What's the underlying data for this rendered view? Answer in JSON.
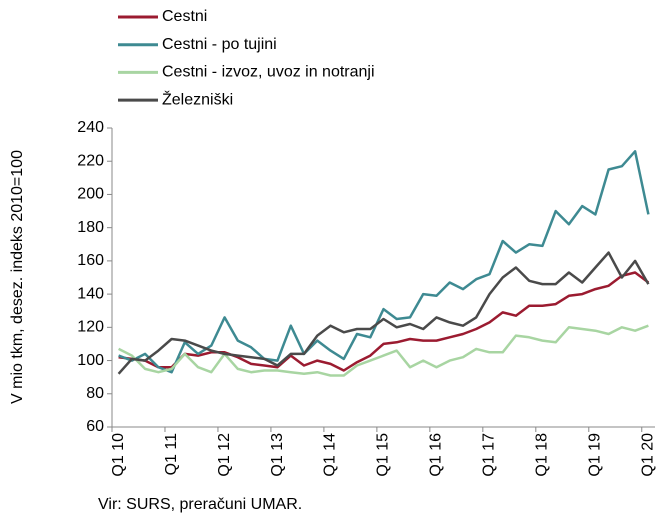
{
  "chart_data": {
    "type": "line",
    "y_axis_label": "V mio tkm, desez. indeks 2010=100",
    "source": "Vir: SURS, preračuni UMAR.",
    "categories": [
      "Q1 10",
      null,
      null,
      null,
      "Q1 11",
      null,
      null,
      null,
      "Q1 12",
      null,
      null,
      null,
      "Q1 13",
      null,
      null,
      null,
      "Q1 14",
      null,
      null,
      null,
      "Q1 15",
      null,
      null,
      null,
      "Q1 16",
      null,
      null,
      null,
      "Q1 17",
      null,
      null,
      null,
      "Q1 18",
      null,
      null,
      null,
      "Q1 19",
      null,
      null,
      null,
      "Q1 20"
    ],
    "series": [
      {
        "name": "Cestni",
        "color": "#9b1b30",
        "values": [
          102,
          101,
          100,
          96,
          96,
          104,
          103,
          105,
          105,
          102,
          98,
          97,
          96,
          103,
          97,
          100,
          98,
          94,
          99,
          103,
          110,
          111,
          113,
          112,
          112,
          114,
          116,
          119,
          123,
          129,
          127,
          133,
          133,
          134,
          139,
          140,
          143,
          145,
          151,
          153,
          147
        ]
      },
      {
        "name": "Cestni - po tujini",
        "color": "#3e8a92",
        "values": [
          103,
          100,
          104,
          96,
          93,
          111,
          104,
          109,
          126,
          112,
          108,
          101,
          100,
          121,
          104,
          112,
          106,
          101,
          116,
          114,
          131,
          125,
          126,
          140,
          139,
          147,
          143,
          149,
          152,
          172,
          165,
          170,
          169,
          190,
          182,
          193,
          188,
          215,
          217,
          226,
          188
        ]
      },
      {
        "name": "Cestni - izvoz, uvoz in notranji",
        "color": "#a8d5a2",
        "values": [
          107,
          103,
          95,
          93,
          95,
          104,
          96,
          93,
          104,
          95,
          93,
          94,
          94,
          93,
          92,
          93,
          91,
          91,
          97,
          100,
          103,
          106,
          96,
          100,
          96,
          100,
          102,
          107,
          105,
          105,
          115,
          114,
          112,
          111,
          120,
          119,
          118,
          116,
          120,
          118,
          121
        ]
      },
      {
        "name": "Železniški",
        "color": "#4a4a4a",
        "values": [
          92,
          101,
          100,
          106,
          113,
          112,
          109,
          106,
          104,
          103,
          102,
          101,
          97,
          104,
          104,
          115,
          121,
          117,
          119,
          119,
          125,
          120,
          122,
          119,
          126,
          123,
          121,
          126,
          140,
          150,
          156,
          148,
          146,
          146,
          153,
          147,
          156,
          165,
          150,
          160,
          146
        ]
      }
    ],
    "ylim": [
      60,
      240
    ],
    "yticks": [
      60,
      80,
      100,
      120,
      140,
      160,
      180,
      200,
      220,
      240
    ],
    "grid": false
  }
}
